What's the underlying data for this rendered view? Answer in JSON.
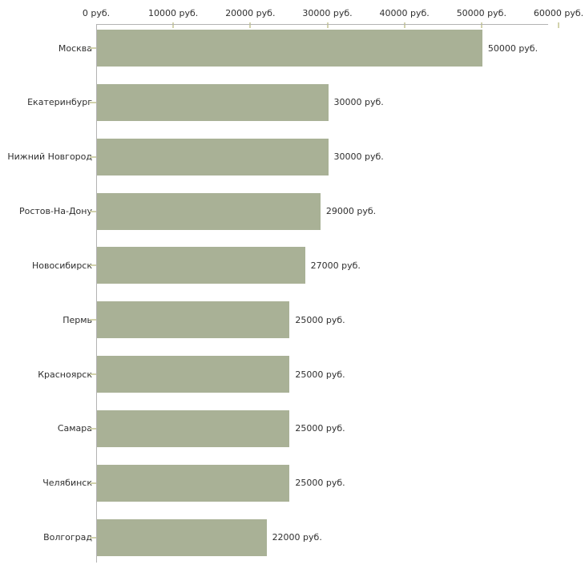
{
  "chart_data": {
    "type": "bar",
    "orientation": "horizontal",
    "title": "",
    "xlabel": "",
    "ylabel": "",
    "categories": [
      "Москва",
      "Екатеринбург",
      "Нижний Новгород",
      "Ростов-На-Дону",
      "Новосибирск",
      "Пермь",
      "Красноярск",
      "Самара",
      "Челябинск",
      "Волгоград"
    ],
    "values": [
      50000,
      30000,
      30000,
      29000,
      27000,
      25000,
      25000,
      25000,
      25000,
      22000
    ],
    "value_labels": [
      "50000 руб.",
      "30000 руб.",
      "30000 руб.",
      "29000 руб.",
      "27000 руб.",
      "25000 руб.",
      "25000 руб.",
      "25000 руб.",
      "25000 руб.",
      "22000 руб."
    ],
    "x_ticks": [
      0,
      10000,
      20000,
      30000,
      40000,
      50000,
      60000
    ],
    "x_tick_labels": [
      "0 руб.",
      "10000 руб.",
      "20000 руб.",
      "30000 руб.",
      "40000 руб.",
      "50000 руб.",
      "60000 руб."
    ],
    "xlim": [
      0,
      60000
    ],
    "unit_suffix": " руб.",
    "grid": false,
    "legend": false,
    "colors": {
      "bar": "#a9b196",
      "axis_line": "#b3b3b3",
      "tick": "#d2d2ac",
      "text": "#2f2f2f"
    }
  }
}
